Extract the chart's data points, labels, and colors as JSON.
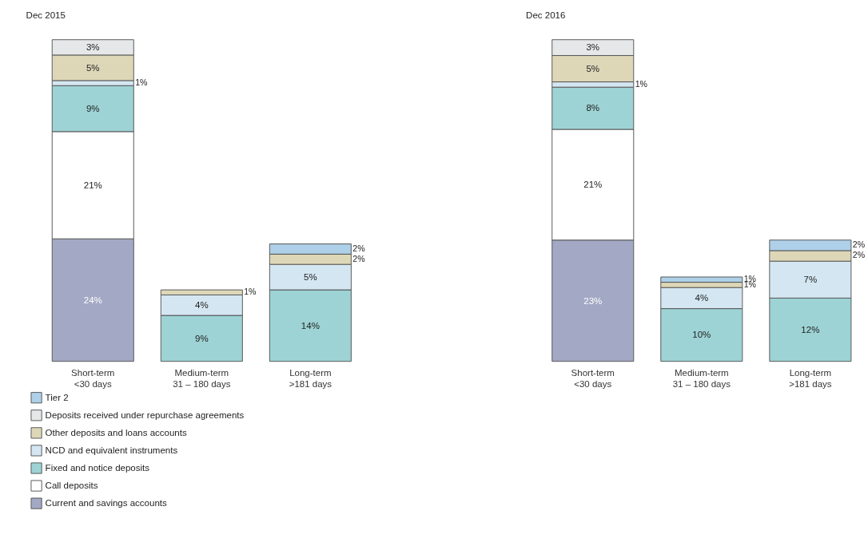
{
  "chart_data": [
    {
      "type": "bar",
      "title": "Dec 2015",
      "stacked": true,
      "legend": "bottom left",
      "categories": [
        "Short-term <30 days",
        "Medium-term 31 – 180 days",
        "Long-term >181 days"
      ],
      "series": [
        {
          "name": "Current and savings accounts",
          "color": "#a3a8c4",
          "values": [
            24,
            null,
            null
          ],
          "value_labels": [
            "24%",
            null,
            null
          ]
        },
        {
          "name": "Call deposits",
          "color": "#ffffff",
          "values": [
            21,
            null,
            null
          ],
          "value_labels": [
            "21%",
            null,
            null
          ]
        },
        {
          "name": "Fixed and notice deposits",
          "color": "#9dd3d4",
          "values": [
            9,
            9,
            14
          ],
          "value_labels": [
            "9%",
            "9%",
            "14%"
          ]
        },
        {
          "name": "NCD and equivalent instruments",
          "color": "#d4e6f2",
          "values": [
            1,
            4,
            5
          ],
          "value_labels": [
            "1%",
            "4%",
            "5%"
          ]
        },
        {
          "name": "Other deposits and loans accounts",
          "color": "#ddd7b8",
          "values": [
            5,
            1,
            2
          ],
          "value_labels": [
            "5%",
            "1%",
            "2%"
          ]
        },
        {
          "name": "Deposits received under repurchase agreements",
          "color": "#e6e7e9",
          "values": [
            3,
            null,
            null
          ],
          "value_labels": [
            "3%",
            null,
            null
          ]
        },
        {
          "name": "Tier 2",
          "color": "#aed0e8",
          "values": [
            null,
            null,
            2
          ],
          "value_labels": [
            null,
            null,
            "2%"
          ]
        }
      ]
    },
    {
      "type": "bar",
      "title": "Dec 2016",
      "stacked": true,
      "categories": [
        "Short-term <30 days",
        "Medium-term 31 – 180 days",
        "Long-term >181 days"
      ],
      "series": [
        {
          "name": "Current and savings accounts",
          "color": "#a3a8c4",
          "values": [
            23,
            null,
            null
          ],
          "value_labels": [
            "23%",
            null,
            null
          ]
        },
        {
          "name": "Call deposits",
          "color": "#ffffff",
          "values": [
            21,
            null,
            null
          ],
          "value_labels": [
            "21%",
            null,
            null
          ]
        },
        {
          "name": "Fixed and notice deposits",
          "color": "#9dd3d4",
          "values": [
            8,
            10,
            12
          ],
          "value_labels": [
            "8%",
            "10%",
            "12%"
          ]
        },
        {
          "name": "NCD and equivalent instruments",
          "color": "#d4e6f2",
          "values": [
            1,
            4,
            7
          ],
          "value_labels": [
            "1%",
            "4%",
            "7%"
          ]
        },
        {
          "name": "Other deposits and loans accounts",
          "color": "#ddd7b8",
          "values": [
            5,
            1,
            2
          ],
          "value_labels": [
            "5%",
            "1%",
            "2%"
          ]
        },
        {
          "name": "Deposits received under repurchase agreements",
          "color": "#e6e7e9",
          "values": [
            3,
            null,
            null
          ],
          "value_labels": [
            "3%",
            null,
            null
          ]
        },
        {
          "name": "Tier 2",
          "color": "#aed0e8",
          "values": [
            null,
            1,
            2
          ],
          "value_labels": [
            null,
            "1%",
            "2%"
          ]
        }
      ]
    }
  ]
}
